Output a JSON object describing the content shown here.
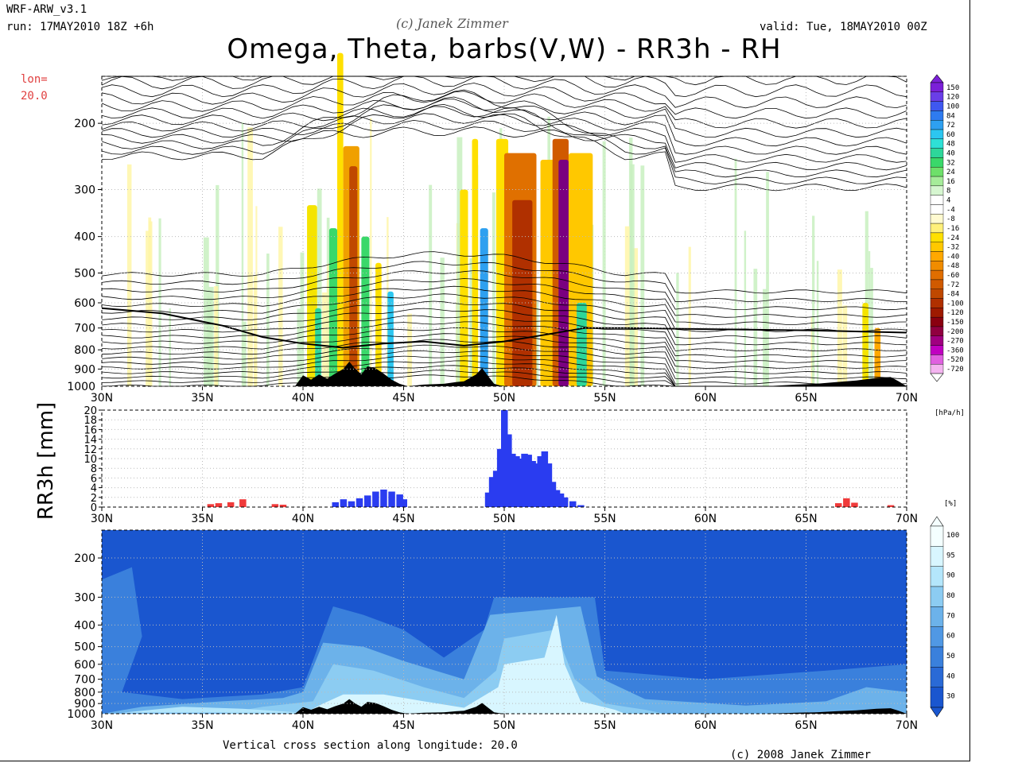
{
  "header": {
    "model": "WRF-ARW_v3.1",
    "run": "run: 17MAY2010 18Z +6h",
    "copyright_top": "(c) Janek Zimmer",
    "valid": "valid: Tue, 18MAY2010 00Z",
    "title": "Omega, Theta, barbs(V,W) - RR3h - RH",
    "lon_label": "lon=",
    "lon_value": "20.0"
  },
  "footer": {
    "caption": "Vertical cross section along longitude: 20.0",
    "copyright": "(c) 2008 Janek Zimmer"
  },
  "colors": {
    "terrain": "#000000",
    "rain_convective": "#2a3cf0",
    "rain_other": "#f03a3a",
    "omega_up_dark": "#7a0080",
    "omega_up": "#b84a00",
    "omega_weak_up": "#f5e400",
    "omega_down": "#4ee07a",
    "rh_dark": "#1a5ad8",
    "rh_light": "#d8f4ff"
  },
  "chart_data": [
    {
      "type": "heatmap",
      "name": "omega-theta-cross-section",
      "xlabel": "",
      "ylabel": "",
      "x_ticks": [
        "30N",
        "35N",
        "40N",
        "45N",
        "50N",
        "55N",
        "60N",
        "65N",
        "70N"
      ],
      "x_range": [
        30,
        70
      ],
      "y_ticks": [
        200,
        300,
        400,
        500,
        600,
        700,
        800,
        900,
        1000
      ],
      "y_range": [
        150,
        1000
      ],
      "y_scale": "log",
      "y_reversed": true,
      "colorbar_label": "[hPa/h]",
      "colorbar": [
        "150",
        "120",
        "100",
        "84",
        "72",
        "60",
        "48",
        "40",
        "32",
        "24",
        "16",
        "8",
        "4",
        "-4",
        "-8",
        "-16",
        "-24",
        "-32",
        "-40",
        "-48",
        "-60",
        "-72",
        "-84",
        "-100",
        "-120",
        "-150",
        "-200",
        "-270",
        "-360",
        "-520",
        "-720"
      ],
      "colorbar_colors": [
        "#7b1fd8",
        "#6a3ee8",
        "#3f58f0",
        "#2e7bf0",
        "#2ea0f0",
        "#2cc6f0",
        "#2ee0d6",
        "#2ed69a",
        "#3ad86a",
        "#6ee06a",
        "#a6ec9a",
        "#d6f6d0",
        "#ffffff",
        "#ffffff",
        "#fffad0",
        "#fff07a",
        "#ffe000",
        "#ffc800",
        "#ffa800",
        "#f08c00",
        "#e06e00",
        "#d05a00",
        "#bf4800",
        "#b03000",
        "#9e1a00",
        "#8a0010",
        "#900040",
        "#a00080",
        "#c000c0",
        "#e060e0",
        "#f4b4f0"
      ],
      "features": [
        {
          "lat_from": 42.0,
          "lat_to": 42.8,
          "omega": -48,
          "top_hpa": 300
        },
        {
          "lat_from": 50.0,
          "lat_to": 51.6,
          "omega": -60,
          "top_hpa": 250
        },
        {
          "lat_from": 52.5,
          "lat_to": 53.2,
          "omega": -270,
          "top_hpa": 250
        },
        {
          "lat_from": 48.6,
          "lat_to": 49.0,
          "omega": -24,
          "top_hpa": 200
        }
      ]
    },
    {
      "type": "bar",
      "name": "rr3h-precipitation",
      "ylabel": "RR3h [mm]",
      "x_ticks": [
        "30N",
        "35N",
        "40N",
        "45N",
        "50N",
        "55N",
        "60N",
        "65N",
        "70N"
      ],
      "x_range": [
        30,
        70
      ],
      "y_ticks": [
        "0",
        "2",
        "4",
        "6",
        "8",
        "10",
        "12",
        "14",
        "16",
        "18",
        "20"
      ],
      "ylim": [
        0,
        20
      ],
      "unit_label": "[%]",
      "series": [
        {
          "color_key": "rain_convective",
          "x": [
            41.6,
            42.0,
            42.4,
            42.8,
            43.2,
            43.6,
            44.0,
            44.4,
            44.8,
            45.0,
            49.2,
            49.4,
            49.6,
            49.8,
            50.0,
            50.2,
            50.4,
            50.6,
            50.8,
            51.0,
            51.2,
            51.4,
            51.6,
            51.8,
            52.0,
            52.2,
            52.4,
            52.6,
            52.8,
            53.0,
            53.4,
            53.8
          ],
          "values": [
            1.0,
            1.6,
            1.2,
            1.8,
            2.4,
            3.2,
            3.6,
            3.2,
            2.6,
            1.6,
            3.0,
            6.2,
            7.5,
            12.0,
            20.0,
            15.0,
            11.0,
            10.5,
            10.0,
            11.0,
            10.8,
            9.5,
            9.0,
            10.5,
            11.5,
            9.0,
            5.2,
            3.5,
            2.8,
            2.0,
            1.2,
            0.4
          ]
        },
        {
          "color_key": "rain_other",
          "x": [
            35.4,
            35.8,
            36.4,
            37.0,
            38.6,
            39.0,
            66.6,
            67.0,
            67.4,
            69.2
          ],
          "values": [
            0.6,
            0.8,
            1.0,
            1.6,
            0.6,
            0.5,
            0.8,
            1.8,
            0.9,
            0.4
          ]
        }
      ]
    },
    {
      "type": "heatmap",
      "name": "relative-humidity-cross-section",
      "x_ticks": [
        "30N",
        "35N",
        "40N",
        "45N",
        "50N",
        "55N",
        "60N",
        "65N",
        "70N"
      ],
      "x_range": [
        30,
        70
      ],
      "y_ticks": [
        200,
        300,
        400,
        500,
        600,
        700,
        800,
        900,
        1000
      ],
      "y_range": [
        150,
        1000
      ],
      "y_scale": "log",
      "y_reversed": true,
      "colorbar": [
        "100",
        "95",
        "90",
        "80",
        "70",
        "60",
        "50",
        "40",
        "30"
      ],
      "colorbar_colors": [
        "#f4ffff",
        "#d8f6ff",
        "#b4e6fb",
        "#8cccf2",
        "#6cb2ea",
        "#5098e4",
        "#3a80dc",
        "#2a6ad6",
        "#1a56cf"
      ]
    }
  ]
}
